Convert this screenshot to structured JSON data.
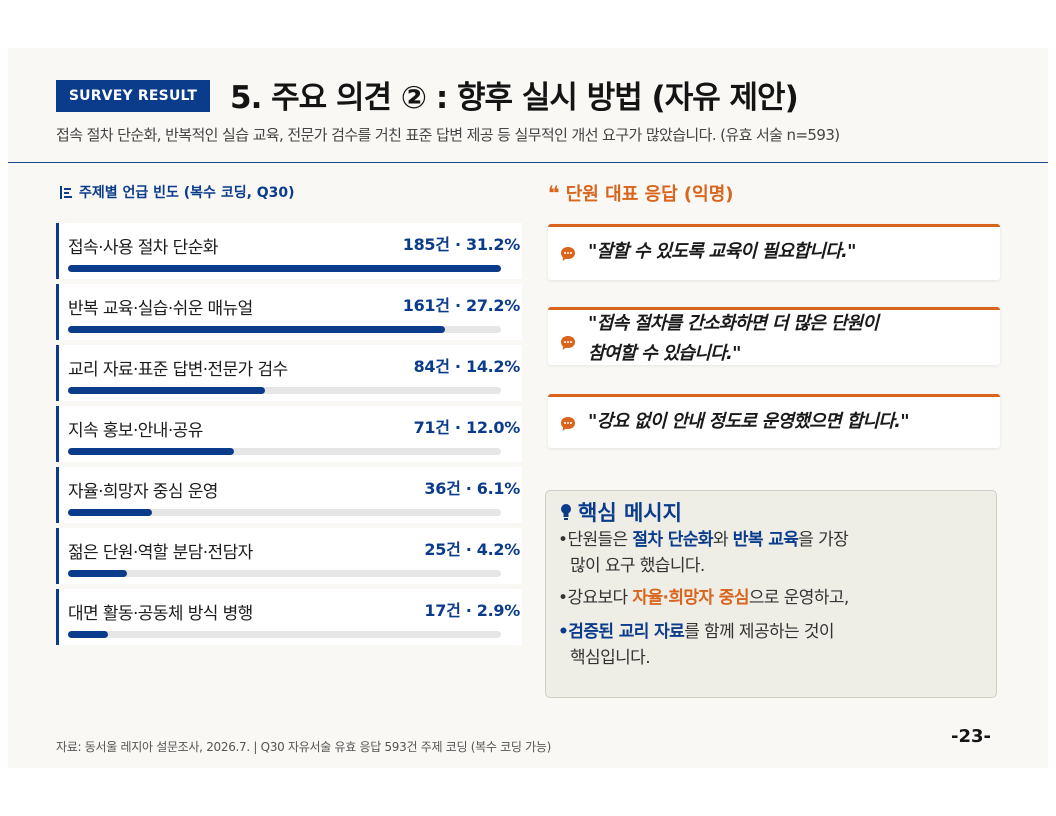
{
  "header": {
    "badge": "SURVEY RESULT",
    "title": "5. 주요 의견 ② : 향후 실시 방법 (자유 제안)",
    "subtitle": "접속 절차 단순화, 반복적인 실습 교육, 전문가 검수를 거친 표준 답변 제공 등 실무적인 개선 요구가 많았습니다. (유효 서술 n=593)"
  },
  "left_section": {
    "title": "주제별 언급 빈도 (복수 코딩, Q30)",
    "icon": "bar-list-icon"
  },
  "chart_data": {
    "type": "bar",
    "orientation": "horizontal",
    "title": "주제별 언급 빈도 (복수 코딩, Q30)",
    "categories": [
      "접속·사용 절차 단순화",
      "반복 교육·실습·쉬운 매뉴얼",
      "교리 자료·표준 답변·전문가 검수",
      "지속 홍보·안내·공유",
      "자율·희망자 중심 운영",
      "젊은 단원·역할 분담·전담자",
      "대면 활동·공동체 방식 병행"
    ],
    "counts": [
      185,
      161,
      84,
      71,
      36,
      25,
      17
    ],
    "percents": [
      31.2,
      27.2,
      14.2,
      12.0,
      6.1,
      4.2,
      2.9
    ],
    "value_labels": [
      "185건 · 31.2%",
      "161건 · 27.2%",
      "84건 · 14.2%",
      "71건 · 12.0%",
      "36건 · 6.1%",
      "25건 · 4.2%",
      "17건 · 2.9%"
    ],
    "xlim": [
      0,
      185
    ],
    "grid": false,
    "bar_color": "#0b3c8c",
    "track_color": "#e6e6e6"
  },
  "right_section": {
    "title": "단원 대표 응답 (익명)",
    "quote_glyph": "❝",
    "quotes": [
      {
        "lines": [
          "\"잘할 수 있도록 교육이 필요합니다.\""
        ]
      },
      {
        "lines": [
          "\"접속 절차를 간소화하면 더 많은 단원이",
          "참여할 수 있습니다.\""
        ]
      },
      {
        "lines": [
          "\"강요 없이 안내 정도로 운영했으면 합니다.\""
        ]
      }
    ]
  },
  "key_message": {
    "title": "핵심 메시지",
    "icon": "lightbulb-icon",
    "b1": {
      "marker": "•",
      "t1": "단원들은 ",
      "h1": "절차 단순화",
      "t2": "와 ",
      "h2": "반복 교육",
      "t3": "을 가장",
      "t4": "많이 요구 했습니다."
    },
    "b2": {
      "marker": "•",
      "t1": "강요보다 ",
      "h1": "자율·희망자 중심",
      "t2": "으로 운영하고,"
    },
    "b3": {
      "marker": "•",
      "h1": "검증된 교리 자료",
      "t1": "를 함께 제공하는 것이",
      "t2": "핵심입니다."
    }
  },
  "footer": {
    "source": "자료: 동서울 레지아 설문조사, 2026.7. | Q30 자유서술 유효 응답 593건 주제 코딩 (복수 코딩 가능)",
    "page": "-23-"
  },
  "colors": {
    "primary": "#0b3c8c",
    "accent": "#d9641c",
    "background": "#f9f8f4"
  }
}
